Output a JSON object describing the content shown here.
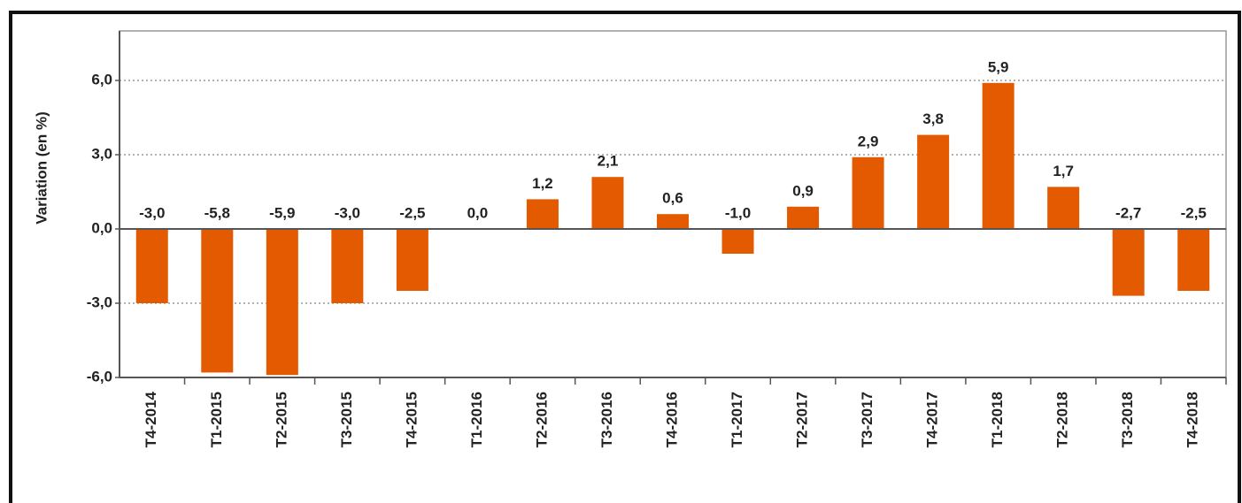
{
  "chart_data": {
    "type": "bar",
    "y_label": "Variation (en %)",
    "categories": [
      "T4-2014",
      "T1-2015",
      "T2-2015",
      "T3-2015",
      "T4-2015",
      "T1-2016",
      "T2-2016",
      "T3-2016",
      "T4-2016",
      "T1-2017",
      "T2-2017",
      "T3-2017",
      "T4-2017",
      "T1-2018",
      "T2-2018",
      "T3-2018",
      "T4-2018"
    ],
    "values": [
      -3.0,
      -5.8,
      -5.9,
      -3.0,
      -2.5,
      0.0,
      1.2,
      2.1,
      0.6,
      -1.0,
      0.9,
      2.9,
      3.8,
      5.9,
      1.7,
      -2.7,
      -2.5
    ],
    "value_labels": [
      "-3,0",
      "-5,8",
      "-5,9",
      "-3,0",
      "-2,5",
      "0,0",
      "1,2",
      "2,1",
      "0,6",
      "-1,0",
      "0,9",
      "2,9",
      "3,8",
      "5,9",
      "1,7",
      "-2,7",
      "-2,5"
    ],
    "color": "#e35a00",
    "ylim": [
      -6,
      8
    ],
    "yticks": [
      {
        "value": -6,
        "label": "-6,0"
      },
      {
        "value": -3,
        "label": "-3,0"
      },
      {
        "value": 0,
        "label": "0,0"
      },
      {
        "value": 3,
        "label": "3,0"
      },
      {
        "value": 6,
        "label": "6,0"
      }
    ],
    "grid": true
  }
}
